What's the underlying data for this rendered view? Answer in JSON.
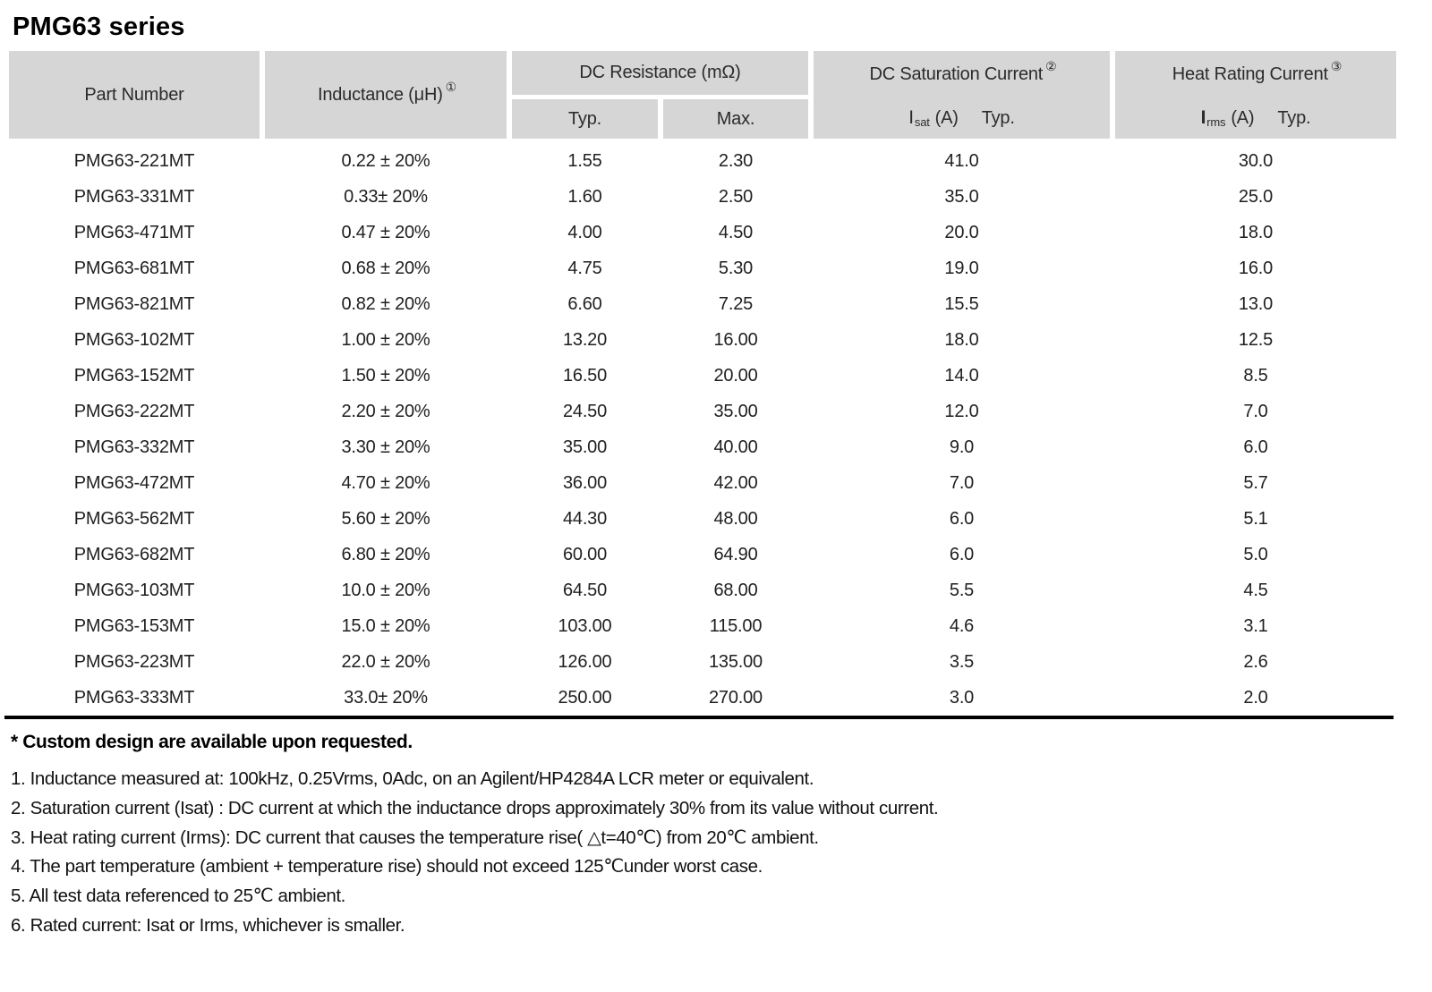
{
  "title": "PMG63 series",
  "colors": {
    "header_bg": "#d6d6d6",
    "rule": "#000000",
    "text": "#1c1c1c"
  },
  "table": {
    "headers": {
      "part_number": "Part Number",
      "inductance_label": "Inductance (μH)",
      "inductance_note_ref": "①",
      "dc_resistance_label": "DC Resistance (mΩ)",
      "typ_label": "Typ.",
      "max_label": "Max.",
      "saturation_label": "DC Saturation Current",
      "saturation_note_ref": "②",
      "saturation_symbol": "I",
      "saturation_symbol_sub": "sat",
      "saturation_unit": "(A)",
      "saturation_typ": "Typ.",
      "heat_label": "Heat Rating Current",
      "heat_note_ref": "③",
      "heat_symbol": "I",
      "heat_symbol_sub": "rms",
      "heat_unit": "(A)",
      "heat_typ": "Typ."
    },
    "column_names": [
      "part-number-cell",
      "inductance-cell",
      "dcr-typ-cell",
      "dcr-max-cell",
      "isat-cell",
      "irms-cell"
    ],
    "rows": [
      [
        "PMG63-221MT",
        "0.22 ± 20%",
        "1.55",
        "2.30",
        "41.0",
        "30.0"
      ],
      [
        "PMG63-331MT",
        "0.33± 20%",
        "1.60",
        "2.50",
        "35.0",
        "25.0"
      ],
      [
        "PMG63-471MT",
        "0.47 ± 20%",
        "4.00",
        "4.50",
        "20.0",
        "18.0"
      ],
      [
        "PMG63-681MT",
        "0.68 ± 20%",
        "4.75",
        "5.30",
        "19.0",
        "16.0"
      ],
      [
        "PMG63-821MT",
        "0.82 ± 20%",
        "6.60",
        "7.25",
        "15.5",
        "13.0"
      ],
      [
        "PMG63-102MT",
        "1.00 ± 20%",
        "13.20",
        "16.00",
        "18.0",
        "12.5"
      ],
      [
        "PMG63-152MT",
        "1.50 ± 20%",
        "16.50",
        "20.00",
        "14.0",
        "8.5"
      ],
      [
        "PMG63-222MT",
        "2.20 ± 20%",
        "24.50",
        "35.00",
        "12.0",
        "7.0"
      ],
      [
        "PMG63-332MT",
        "3.30 ± 20%",
        "35.00",
        "40.00",
        "9.0",
        "6.0"
      ],
      [
        "PMG63-472MT",
        "4.70 ± 20%",
        "36.00",
        "42.00",
        "7.0",
        "5.7"
      ],
      [
        "PMG63-562MT",
        "5.60 ± 20%",
        "44.30",
        "48.00",
        "6.0",
        "5.1"
      ],
      [
        "PMG63-682MT",
        "6.80 ± 20%",
        "60.00",
        "64.90",
        "6.0",
        "5.0"
      ],
      [
        "PMG63-103MT",
        "10.0 ± 20%",
        "64.50",
        "68.00",
        "5.5",
        "4.5"
      ],
      [
        "PMG63-153MT",
        "15.0 ± 20%",
        "103.00",
        "115.00",
        "4.6",
        "3.1"
      ],
      [
        "PMG63-223MT",
        "22.0 ± 20%",
        "126.00",
        "135.00",
        "3.5",
        "2.6"
      ],
      [
        "PMG63-333MT",
        "33.0± 20%",
        "250.00",
        "270.00",
        "3.0",
        "2.0"
      ]
    ]
  },
  "notes": {
    "custom_design": "* Custom design are available upon requested.",
    "items": [
      "1. Inductance measured at: 100kHz, 0.25Vrms, 0Adc, on an Agilent/HP4284A LCR meter or equivalent.",
      "2. Saturation current (Isat) : DC current at which the inductance drops approximately 30% from its value without current.",
      "3. Heat rating current (Irms): DC current that causes the temperature rise( △t=40℃) from 20℃ ambient.",
      "4. The part temperature (ambient + temperature rise) should not exceed 125℃under worst case.",
      "5. All test data referenced to 25℃ ambient.",
      "6. Rated current: Isat or Irms, whichever is smaller."
    ]
  }
}
